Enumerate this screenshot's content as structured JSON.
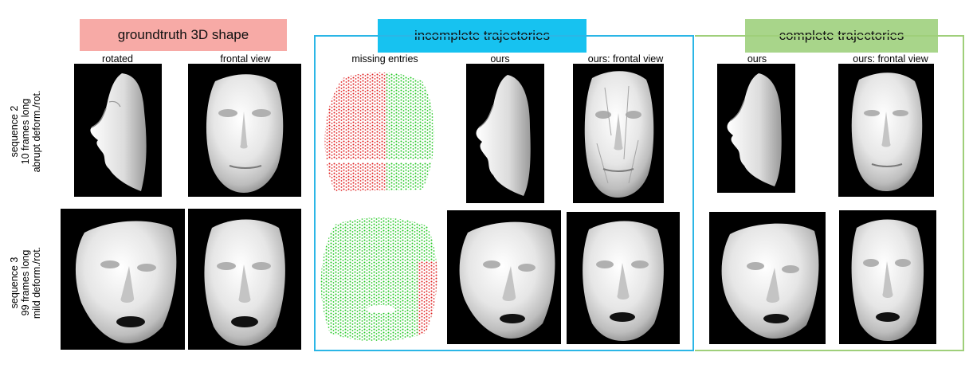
{
  "headers": {
    "groundtruth": "groundtruth 3D shape",
    "incomplete": "incomplete trajectories",
    "complete": "complete trajectories"
  },
  "colors": {
    "groundtruth_bg": "#f7aaa6",
    "incomplete_bg": "#17c2f0",
    "incomplete_border": "#2bb6e6",
    "complete_bg": "#a8d58a",
    "complete_border": "#9fcf7a",
    "missing_red": "#e02020",
    "present_green": "#22c822"
  },
  "columns": {
    "rotated": "rotated",
    "frontal": "frontal view",
    "missing": "missing entries",
    "ours": "ours",
    "ours_frontal": "ours: frontal view",
    "ours2": "ours",
    "ours_frontal2": "ours: frontal view"
  },
  "rows": {
    "seq2": {
      "line1": "sequence 2",
      "line2": "10 frames long",
      "line3": "abrupt deform./rot."
    },
    "seq3": {
      "line1": "sequence 3",
      "line2": "99 frames long",
      "line3": "mild deform./rot."
    }
  }
}
